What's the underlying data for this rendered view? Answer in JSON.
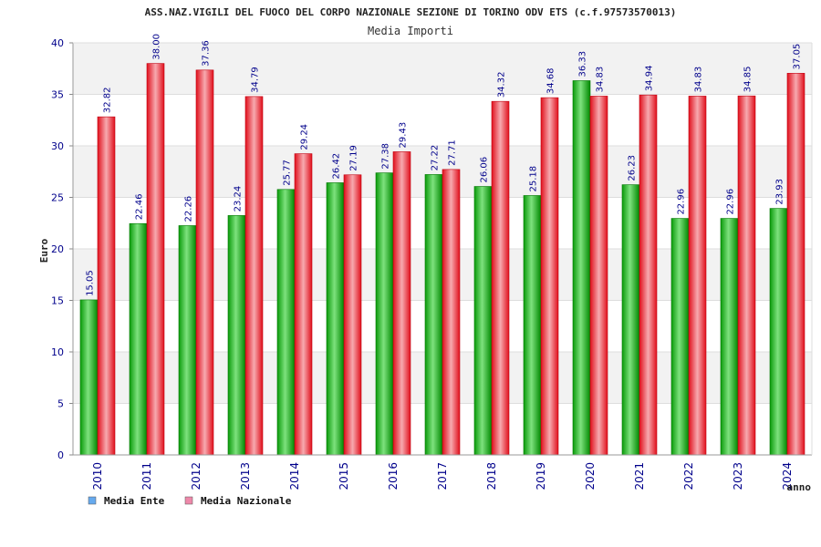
{
  "chart_data": {
    "type": "bar",
    "title": "ASS.NAZ.VIGILI DEL FUOCO DEL CORPO NAZIONALE SEZIONE DI TORINO ODV ETS (c.f.97573570013)",
    "subtitle": "Media Importi",
    "xlabel": "anno",
    "ylabel": "Euro",
    "ylim": [
      0,
      40
    ],
    "yticks": [
      0,
      5,
      10,
      15,
      20,
      25,
      30,
      35,
      40
    ],
    "grid": true,
    "categories": [
      "2010",
      "2011",
      "2012",
      "2013",
      "2014",
      "2015",
      "2016",
      "2017",
      "2018",
      "2019",
      "2020",
      "2021",
      "2022",
      "2023",
      "2024"
    ],
    "series": [
      {
        "name": "Media Ente",
        "color": "#00aa00",
        "values": [
          15.05,
          22.46,
          22.26,
          23.24,
          25.77,
          26.42,
          27.38,
          27.22,
          26.06,
          25.18,
          36.33,
          26.23,
          22.96,
          22.96,
          23.93
        ],
        "labels": [
          "15.05",
          "22.46",
          "22.26",
          "23.24",
          "25.77",
          "26.42",
          "27.38",
          "27.22",
          "26.06",
          "25.18",
          "36.33",
          "26.23",
          "22.96",
          "22.96",
          "23.93"
        ]
      },
      {
        "name": "Media Nazionale",
        "color": "#e8141e",
        "values": [
          32.82,
          38.0,
          37.36,
          34.79,
          29.24,
          27.19,
          29.43,
          27.71,
          34.32,
          34.68,
          34.83,
          34.94,
          34.83,
          34.85,
          37.05
        ],
        "labels": [
          "32.82",
          "38.00",
          "37.36",
          "34.79",
          "29.24",
          "27.19",
          "29.43",
          "27.71",
          "34.32",
          "34.68",
          "34.83",
          "34.94",
          "34.83",
          "34.85",
          "37.05"
        ]
      }
    ],
    "legend": [
      {
        "label": "Media Ente",
        "swatch": "#66aaee"
      },
      {
        "label": "Media Nazionale",
        "swatch": "#ee88aa"
      }
    ]
  }
}
